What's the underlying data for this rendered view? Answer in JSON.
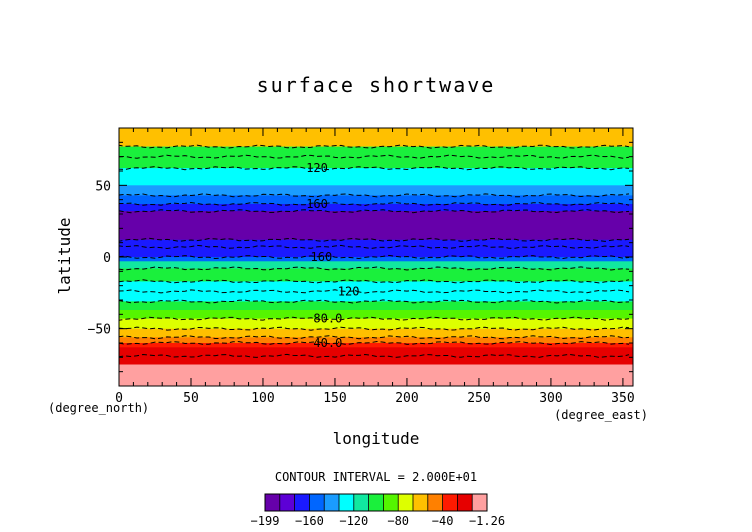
{
  "chart_data": {
    "type": "heatmap",
    "title": "surface shortwave",
    "xlabel": "longitude",
    "ylabel": "latitude",
    "x_units": "(degree_east)",
    "y_units": "(degree_north)",
    "xlim": [
      0,
      357
    ],
    "ylim": [
      -90,
      90
    ],
    "x_ticks": [
      0,
      50,
      100,
      150,
      200,
      250,
      300,
      350
    ],
    "y_ticks": [
      50,
      0,
      -50
    ],
    "y_tick_labels": [
      "50",
      "0",
      "−50"
    ],
    "contour_interval_label": "CONTOUR INTERVAL = 2.000E+01",
    "colorbar": {
      "colors": [
        "#6600aa",
        "#5d00d6",
        "#1a1aff",
        "#0066ff",
        "#1a9cff",
        "#00ffff",
        "#11e8a0",
        "#1af03c",
        "#55f500",
        "#ddff00",
        "#ffc000",
        "#ff8000",
        "#ff1a00",
        "#e60000",
        "#ffa0a0"
      ],
      "tick_labels": [
        "−199",
        "−160",
        "−120",
        "−80",
        "−40",
        "−1.26"
      ]
    },
    "bands": [
      {
        "lat_top": 90,
        "lat_bottom": 77,
        "value": -65
      },
      {
        "lat_top": 77,
        "lat_bottom": 70,
        "value": -95
      },
      {
        "lat_top": 70,
        "lat_bottom": 62,
        "value": -105
      },
      {
        "lat_top": 62,
        "lat_bottom": 50,
        "value": -130
      },
      {
        "lat_top": 50,
        "lat_bottom": 43,
        "value": -140
      },
      {
        "lat_top": 43,
        "lat_bottom": 37,
        "value": -155
      },
      {
        "lat_top": 37,
        "lat_bottom": 32,
        "value": -165
      },
      {
        "lat_top": 32,
        "lat_bottom": 12,
        "value": -190
      },
      {
        "lat_top": 12,
        "lat_bottom": 7,
        "value": -170
      },
      {
        "lat_top": 7,
        "lat_bottom": 0,
        "value": -160
      },
      {
        "lat_top": 0,
        "lat_bottom": -3,
        "value": -150
      },
      {
        "lat_top": -3,
        "lat_bottom": -8,
        "value": -110
      },
      {
        "lat_top": -8,
        "lat_bottom": -17,
        "value": -100
      },
      {
        "lat_top": -17,
        "lat_bottom": -24,
        "value": -130
      },
      {
        "lat_top": -24,
        "lat_bottom": -31,
        "value": -120
      },
      {
        "lat_top": -31,
        "lat_bottom": -37,
        "value": -100
      },
      {
        "lat_top": -37,
        "lat_bottom": -43,
        "value": -90
      },
      {
        "lat_top": -43,
        "lat_bottom": -50,
        "value": -75
      },
      {
        "lat_top": -50,
        "lat_bottom": -56,
        "value": -55
      },
      {
        "lat_top": -56,
        "lat_bottom": -60,
        "value": -45
      },
      {
        "lat_top": -60,
        "lat_bottom": -63,
        "value": -35
      },
      {
        "lat_top": -63,
        "lat_bottom": -69,
        "value": -25
      },
      {
        "lat_top": -69,
        "lat_bottom": -75,
        "value": -15
      },
      {
        "lat_top": -75,
        "lat_bottom": -90,
        "value": -5
      }
    ],
    "contours": [
      {
        "lat": 77
      },
      {
        "lat": 70
      },
      {
        "lat": 62,
        "label": "120",
        "label_lon": 130
      },
      {
        "lat": 43
      },
      {
        "lat": 37,
        "label": "160",
        "label_lon": 130
      },
      {
        "lat": 32
      },
      {
        "lat": 12
      },
      {
        "lat": 7
      },
      {
        "lat": 0,
        "label": "160",
        "label_lon": 133
      },
      {
        "lat": -8
      },
      {
        "lat": -17
      },
      {
        "lat": -24,
        "label": "120",
        "label_lon": 152
      },
      {
        "lat": -31
      },
      {
        "lat": -43,
        "label": "80.0",
        "label_lon": 135
      },
      {
        "lat": -50
      },
      {
        "lat": -56
      },
      {
        "lat": -60,
        "label": "40.0",
        "label_lon": 135
      },
      {
        "lat": -69
      }
    ]
  }
}
